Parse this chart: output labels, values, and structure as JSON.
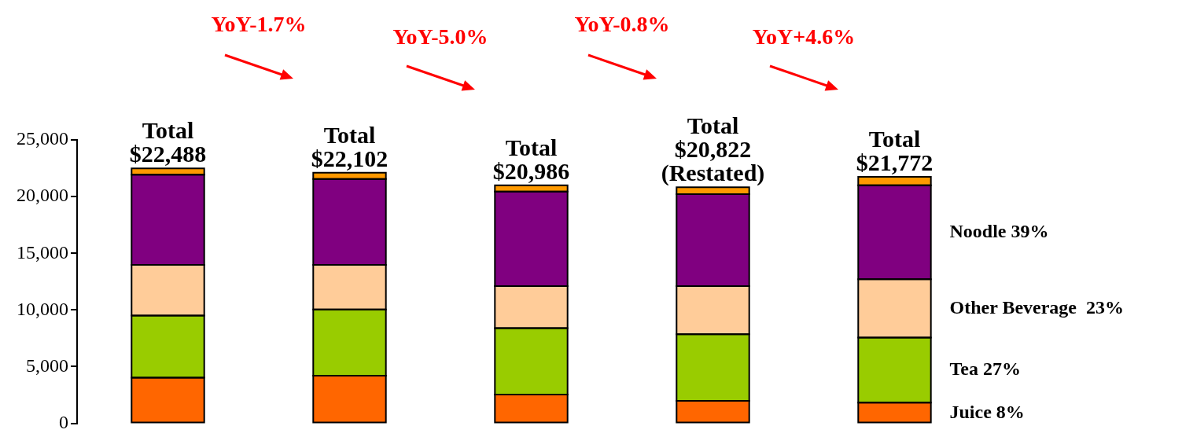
{
  "chart_data": {
    "type": "bar",
    "stacked": true,
    "categories": [
      null,
      null,
      null,
      null,
      null
    ],
    "series": [
      {
        "name": "Juice 8%",
        "color": "#ff6600",
        "values": [
          4030,
          4200,
          2540,
          1990,
          1820
        ]
      },
      {
        "name": "Tea 27%",
        "color": "#99cc00",
        "values": [
          5470,
          5850,
          5860,
          5860,
          5750
        ]
      },
      {
        "name": "Other Beverage  23%",
        "color": "#ffcc99",
        "values": [
          4480,
          3930,
          3700,
          4250,
          5140
        ]
      },
      {
        "name": "Noodle 39%",
        "color": "#800080",
        "values": [
          7950,
          7570,
          8340,
          8120,
          8290
        ]
      },
      {
        "color": "#ff9900",
        "values": [
          550,
          550,
          550,
          600,
          750
        ]
      }
    ],
    "totals": [
      "Total $22,488",
      "Total $22,102",
      "Total $20,986",
      "Total $20,822 (Restated)",
      "Total $21,772"
    ],
    "annotations": [
      "YoY-1.7%",
      "YoY-5.0%",
      "YoY-0.8%",
      "YoY+4.6%"
    ],
    "ylim": [
      0,
      25000
    ],
    "yticks": [
      0,
      {
        "value": 5000,
        "label": "5,000"
      },
      {
        "value": 10000,
        "label": "10,000"
      },
      {
        "value": 15000,
        "label": "15,000"
      },
      {
        "value": 20000,
        "label": "20,000"
      },
      {
        "value": 25000,
        "label": "25,000"
      }
    ],
    "grid": false,
    "legend": "right"
  }
}
